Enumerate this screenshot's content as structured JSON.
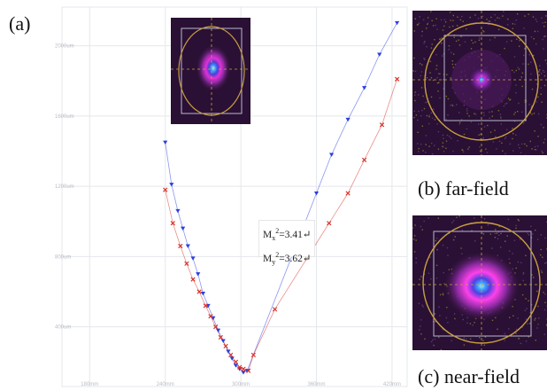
{
  "labels": {
    "a": "(a)",
    "b": "(b) far-field",
    "c": "(c) near-field"
  },
  "m2": {
    "x_prefix": "M",
    "x_sub": "x",
    "x_value": "=3.41",
    "y_prefix": "M",
    "y_sub": "y",
    "y_value": "=3.62",
    "sup": "2",
    "mark": "↵"
  },
  "colors": {
    "series_x": "#2a3fe0",
    "series_y": "#d7322a",
    "grid": "#e4e7ec",
    "ellipse": "#c8a040",
    "beam_bg": "#2a1034"
  },
  "chart_data": {
    "type": "scatter",
    "title": "",
    "xlabel": "",
    "ylabel": "",
    "x_ticks": [
      "180mm",
      "240mm",
      "300mm",
      "360mm",
      "420mm"
    ],
    "y_ticks": [
      "400um",
      "800um",
      "1200um",
      "1600um",
      "2000um"
    ],
    "xlim": [
      158,
      432
    ],
    "ylim": [
      60,
      2220
    ],
    "grid": true,
    "series": [
      {
        "name": "",
        "marker": "triangle-down",
        "color": "#2a3fe0",
        "points": [
          [
            240,
            1450
          ],
          [
            245,
            1210
          ],
          [
            250,
            1060
          ],
          [
            254,
            960
          ],
          [
            258,
            860
          ],
          [
            262,
            790
          ],
          [
            266,
            700
          ],
          [
            270,
            590
          ],
          [
            274,
            520
          ],
          [
            278,
            450
          ],
          [
            282,
            380
          ],
          [
            286,
            320
          ],
          [
            290,
            260
          ],
          [
            293,
            220
          ],
          [
            296,
            180
          ],
          [
            299,
            160
          ],
          [
            302,
            140
          ],
          [
            305,
            150
          ],
          [
            360,
            1160
          ],
          [
            372,
            1380
          ],
          [
            385,
            1580
          ],
          [
            398,
            1760
          ],
          [
            410,
            1950
          ],
          [
            424,
            2130
          ]
        ]
      },
      {
        "name": "",
        "marker": "x",
        "color": "#d7322a",
        "points": [
          [
            240,
            1180
          ],
          [
            246,
            990
          ],
          [
            252,
            860
          ],
          [
            257,
            760
          ],
          [
            262,
            670
          ],
          [
            267,
            600
          ],
          [
            272,
            520
          ],
          [
            276,
            460
          ],
          [
            280,
            400
          ],
          [
            284,
            340
          ],
          [
            288,
            290
          ],
          [
            292,
            240
          ],
          [
            296,
            200
          ],
          [
            299,
            170
          ],
          [
            302,
            160
          ],
          [
            306,
            150
          ],
          [
            310,
            240
          ],
          [
            327,
            500
          ],
          [
            370,
            990
          ],
          [
            385,
            1160
          ],
          [
            398,
            1350
          ],
          [
            412,
            1550
          ],
          [
            424,
            1810
          ]
        ]
      }
    ]
  }
}
